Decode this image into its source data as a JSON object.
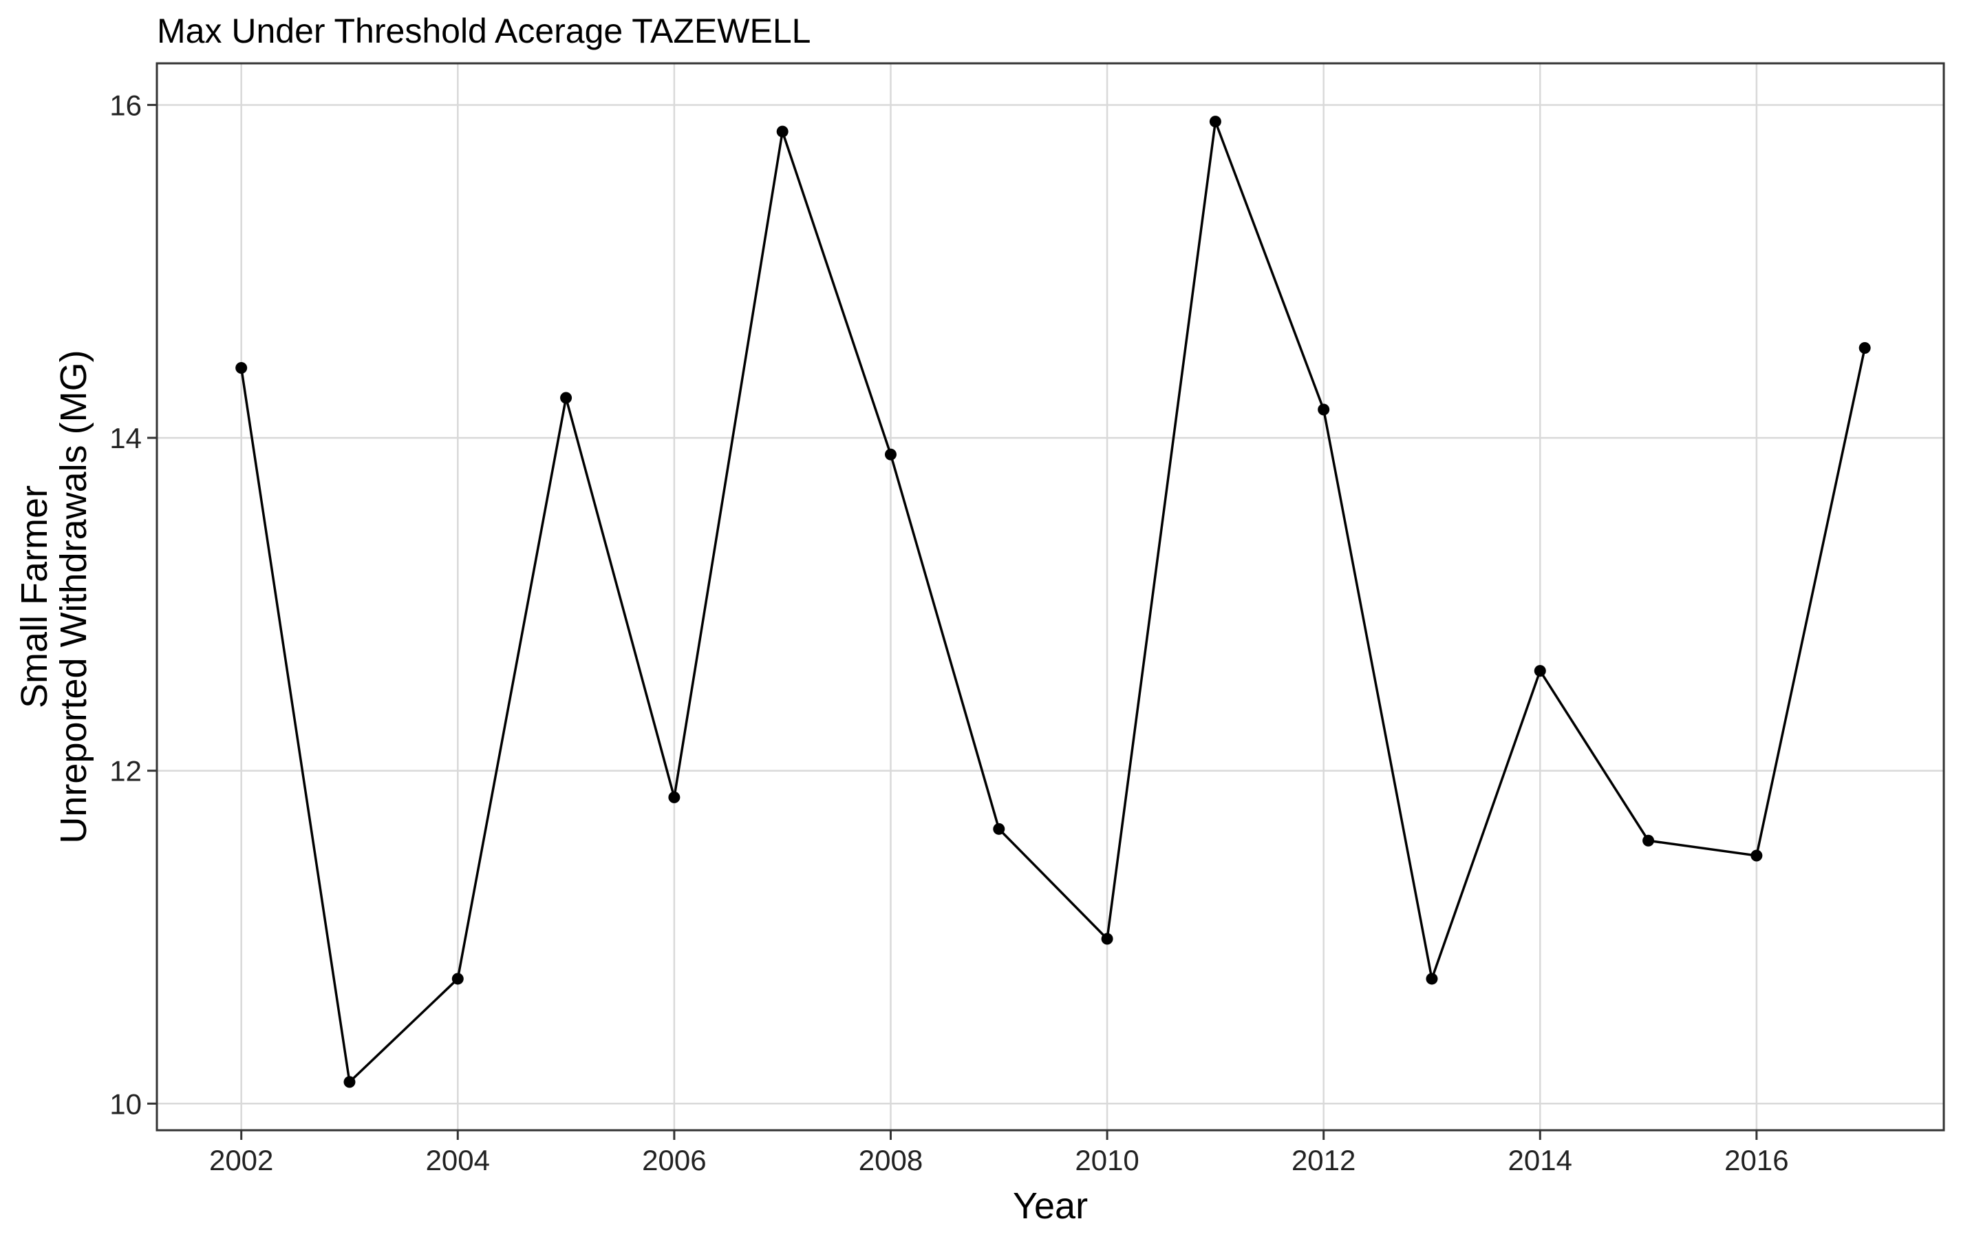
{
  "chart_data": {
    "type": "line",
    "title": "Max Under Threshold Acerage TAZEWELL",
    "xlabel": "Year",
    "ylabel_lines": [
      "Small Farmer",
      "Unreported Withdrawals (MG)"
    ],
    "x_ticks": [
      2002,
      2004,
      2006,
      2008,
      2010,
      2012,
      2014,
      2016
    ],
    "x_tick_labels": [
      "2002",
      "2004",
      "2006",
      "2008",
      "2010",
      "2012",
      "2014",
      "2016"
    ],
    "y_ticks": [
      10,
      12,
      14,
      16
    ],
    "y_tick_labels": [
      "10",
      "12",
      "14",
      "16"
    ],
    "xlim": [
      2001.22,
      2017.73
    ],
    "ylim": [
      9.84,
      16.25
    ],
    "grid": true,
    "legend": "none",
    "series": [
      {
        "x": [
          2002,
          2003,
          2004,
          2005,
          2006,
          2007,
          2008,
          2009,
          2010,
          2011,
          2012,
          2013,
          2014,
          2015,
          2016,
          2017
        ],
        "y": [
          14.42,
          10.13,
          10.75,
          14.24,
          11.84,
          15.84,
          13.9,
          11.65,
          10.99,
          15.9,
          14.17,
          10.75,
          12.6,
          11.58,
          11.49,
          14.54
        ],
        "color": "#000000"
      }
    ]
  }
}
